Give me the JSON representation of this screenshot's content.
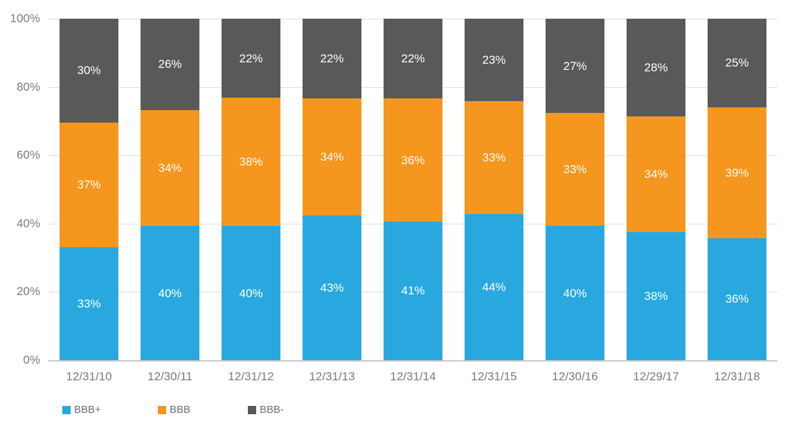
{
  "chart_data": {
    "type": "bar",
    "stacked": true,
    "percent_stacked": true,
    "title": "",
    "xlabel": "",
    "ylabel": "",
    "categories": [
      "12/31/10",
      "12/30/11",
      "12/31/12",
      "12/31/13",
      "12/31/14",
      "12/31/15",
      "12/30/16",
      "12/29/17",
      "12/31/18"
    ],
    "series": [
      {
        "name": "BBB+",
        "color": "#29a8e0",
        "values": [
          33,
          40,
          40,
          43,
          41,
          44,
          40,
          38,
          36
        ]
      },
      {
        "name": "BBB",
        "color": "#f5961e",
        "values": [
          37,
          34,
          38,
          34,
          36,
          33,
          33,
          34,
          39
        ]
      },
      {
        "name": "BBB-",
        "color": "#595959",
        "values": [
          30,
          26,
          22,
          22,
          22,
          23,
          27,
          28,
          25
        ]
      }
    ],
    "value_suffix": "%",
    "data_label_color": "#ffffff",
    "ylim": [
      0,
      100
    ],
    "yticks": [
      0,
      20,
      40,
      60,
      80,
      100
    ],
    "ytick_labels": [
      "0%",
      "20%",
      "40%",
      "60%",
      "80%",
      "100%"
    ],
    "grid": true,
    "gridline_color": "#dcdcdc",
    "baseline_color": "#c9c9c9",
    "axis_text_color": "#7a7a7a",
    "legend_position": "bottom-left",
    "legend": [
      "BBB+",
      "BBB",
      "BBB-"
    ],
    "background": "#ffffff"
  }
}
